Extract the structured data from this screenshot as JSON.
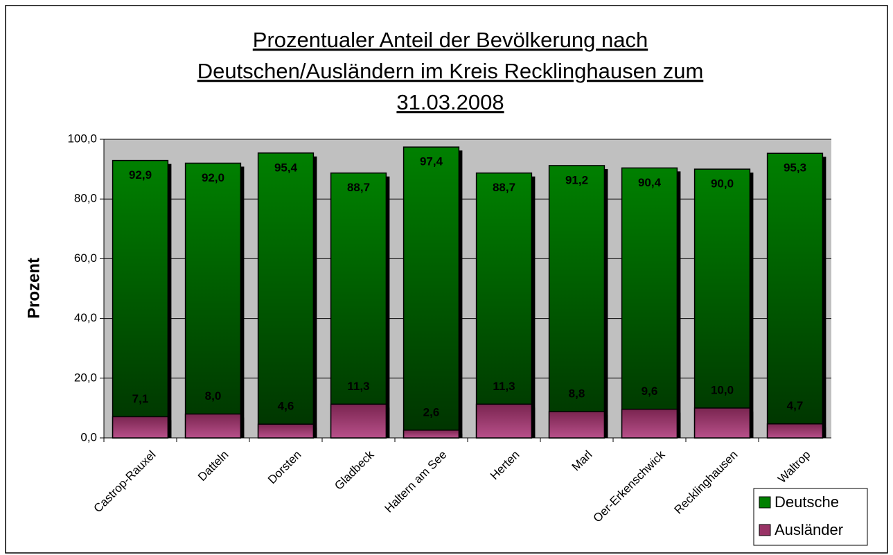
{
  "chart_data": {
    "type": "bar",
    "overlap": true,
    "title": [
      "Prozentualer Anteil der Bevölkerung nach ",
      "Deutschen/Ausländern im Kreis Recklinghausen zum",
      "31.03.2008"
    ],
    "ylabel": "Prozent",
    "categories": [
      "Castrop-Rauxel",
      "Datteln",
      "Dorsten",
      "Gladbeck",
      "Haltern am See",
      "Herten",
      "Marl",
      "Oer-Erkenschwick",
      "Recklinghausen",
      "Waltrop"
    ],
    "series": [
      {
        "name": "Deutsche",
        "color": "#008000",
        "values": [
          92.9,
          92.0,
          95.4,
          88.7,
          97.4,
          88.7,
          91.2,
          90.4,
          90.0,
          95.3
        ],
        "value_labels": [
          "92,9",
          "92,0",
          "95,4",
          "88,7",
          "97,4",
          "88,7",
          "91,2",
          "90,4",
          "90,0",
          "95,3"
        ]
      },
      {
        "name": "Ausländer",
        "color": "#993366",
        "values": [
          7.1,
          8.0,
          4.6,
          11.3,
          2.6,
          11.3,
          8.8,
          9.6,
          10.0,
          4.7
        ],
        "value_labels": [
          "7,1",
          "8,0",
          "4,6",
          "11,3",
          "2,6",
          "11,3",
          "8,8",
          "9,6",
          "10,0",
          "4,7"
        ]
      }
    ],
    "ylim": [
      0,
      100
    ],
    "yticks": [
      {
        "value": 0,
        "label": "0,0"
      },
      {
        "value": 20,
        "label": "20,0"
      },
      {
        "value": 40,
        "label": "40,0"
      },
      {
        "value": 60,
        "label": "60,0"
      },
      {
        "value": 80,
        "label": "80,0"
      },
      {
        "value": 100,
        "label": "100,0"
      }
    ],
    "grid": true,
    "legend": "bottom-right"
  }
}
